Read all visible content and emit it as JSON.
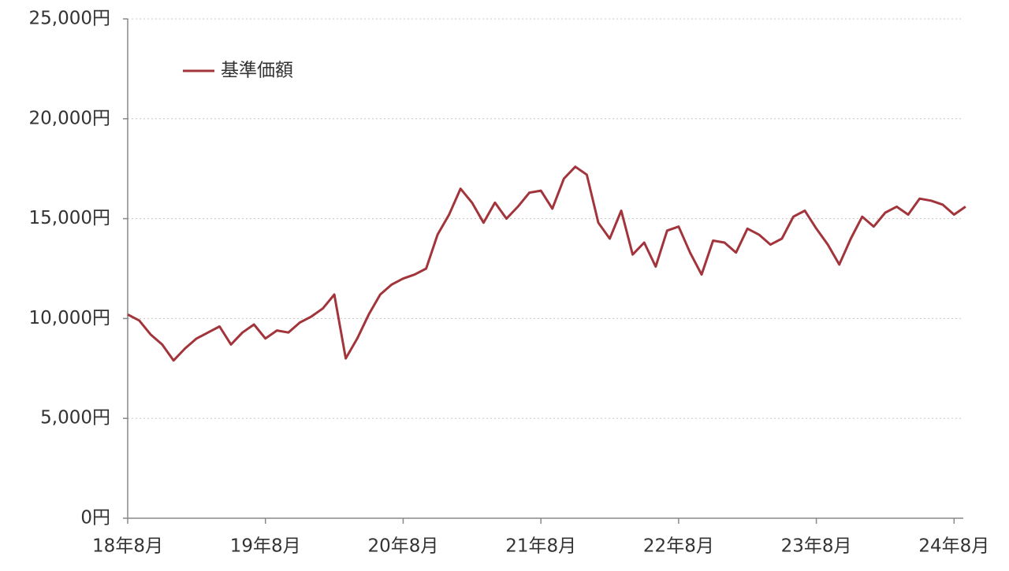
{
  "chart_data": {
    "type": "line",
    "categories": [
      "18年8月",
      null,
      null,
      null,
      null,
      null,
      null,
      null,
      null,
      null,
      null,
      null,
      "19年8月",
      null,
      null,
      null,
      null,
      null,
      null,
      null,
      null,
      null,
      null,
      null,
      "20年8月",
      null,
      null,
      null,
      null,
      null,
      null,
      null,
      null,
      null,
      null,
      null,
      "21年8月",
      null,
      null,
      null,
      null,
      null,
      null,
      null,
      null,
      null,
      null,
      null,
      "22年8月",
      null,
      null,
      null,
      null,
      null,
      null,
      null,
      null,
      null,
      null,
      null,
      "23年8月",
      null,
      null,
      null,
      null,
      null,
      null,
      null,
      null,
      null,
      null,
      null,
      "24年8月",
      null
    ],
    "series": [
      {
        "name": "基準価額",
        "color": "#a2343b",
        "values": [
          10200,
          9900,
          9200,
          8700,
          7900,
          8500,
          9000,
          9300,
          9600,
          8700,
          9300,
          9700,
          9000,
          9400,
          9300,
          9800,
          10100,
          10500,
          11200,
          8000,
          9000,
          10200,
          11200,
          11700,
          12000,
          12200,
          12500,
          14200,
          15200,
          16500,
          15800,
          14800,
          15800,
          15000,
          15600,
          16300,
          16400,
          15500,
          17000,
          17600,
          17200,
          14800,
          14000,
          15400,
          13200,
          13800,
          12600,
          14400,
          14600,
          13300,
          12200,
          13900,
          13800,
          13300,
          14500,
          14200,
          13700,
          14000,
          15100,
          15400,
          14500,
          13700,
          12700,
          14000,
          15100,
          14600,
          15300,
          15600,
          15200,
          16000,
          15900,
          15700,
          15200,
          15600
        ]
      }
    ],
    "ylim": [
      0,
      25000
    ],
    "yticks": [
      {
        "value": 0,
        "label": "0円"
      },
      {
        "value": 5000,
        "label": "5,000円"
      },
      {
        "value": 10000,
        "label": "10,000円"
      },
      {
        "value": 15000,
        "label": "15,000円"
      },
      {
        "value": 20000,
        "label": "20,000円"
      },
      {
        "value": 25000,
        "label": "25,000円"
      }
    ],
    "grid": true,
    "legend": "upper-left"
  }
}
